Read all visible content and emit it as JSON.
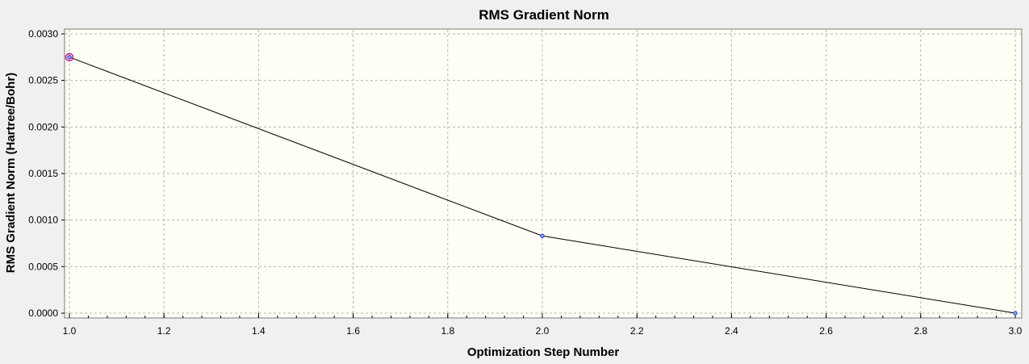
{
  "colors": {
    "background": "#f0f0f0",
    "plot_background": "#fffff5",
    "grid": "#b4b4b4",
    "line": "#000000",
    "marker": "#2b2bd6",
    "highlight_marker": "#d4147a"
  },
  "chart_data": {
    "type": "line",
    "title": "RMS Gradient Norm",
    "xlabel": "Optimization Step Number",
    "ylabel": "RMS Gradient Norm (Hartree/Bohr)",
    "xlim": [
      1.0,
      3.0
    ],
    "ylim": [
      0.0,
      0.003
    ],
    "x_ticks": [
      "1.0",
      "1.2",
      "1.4",
      "1.6",
      "1.8",
      "2.0",
      "2.2",
      "2.4",
      "2.6",
      "2.8",
      "3.0"
    ],
    "y_ticks": [
      "0.0000",
      "0.0005",
      "0.0010",
      "0.0015",
      "0.0020",
      "0.0025",
      "0.0030"
    ],
    "x_minor_step": 0.04,
    "grid": true,
    "grid_style": "dashed",
    "highlighted_point_index": 0,
    "series": [
      {
        "x": [
          1,
          2,
          3
        ],
        "values": [
          0.00275,
          0.00083,
          0.0
        ]
      }
    ]
  }
}
